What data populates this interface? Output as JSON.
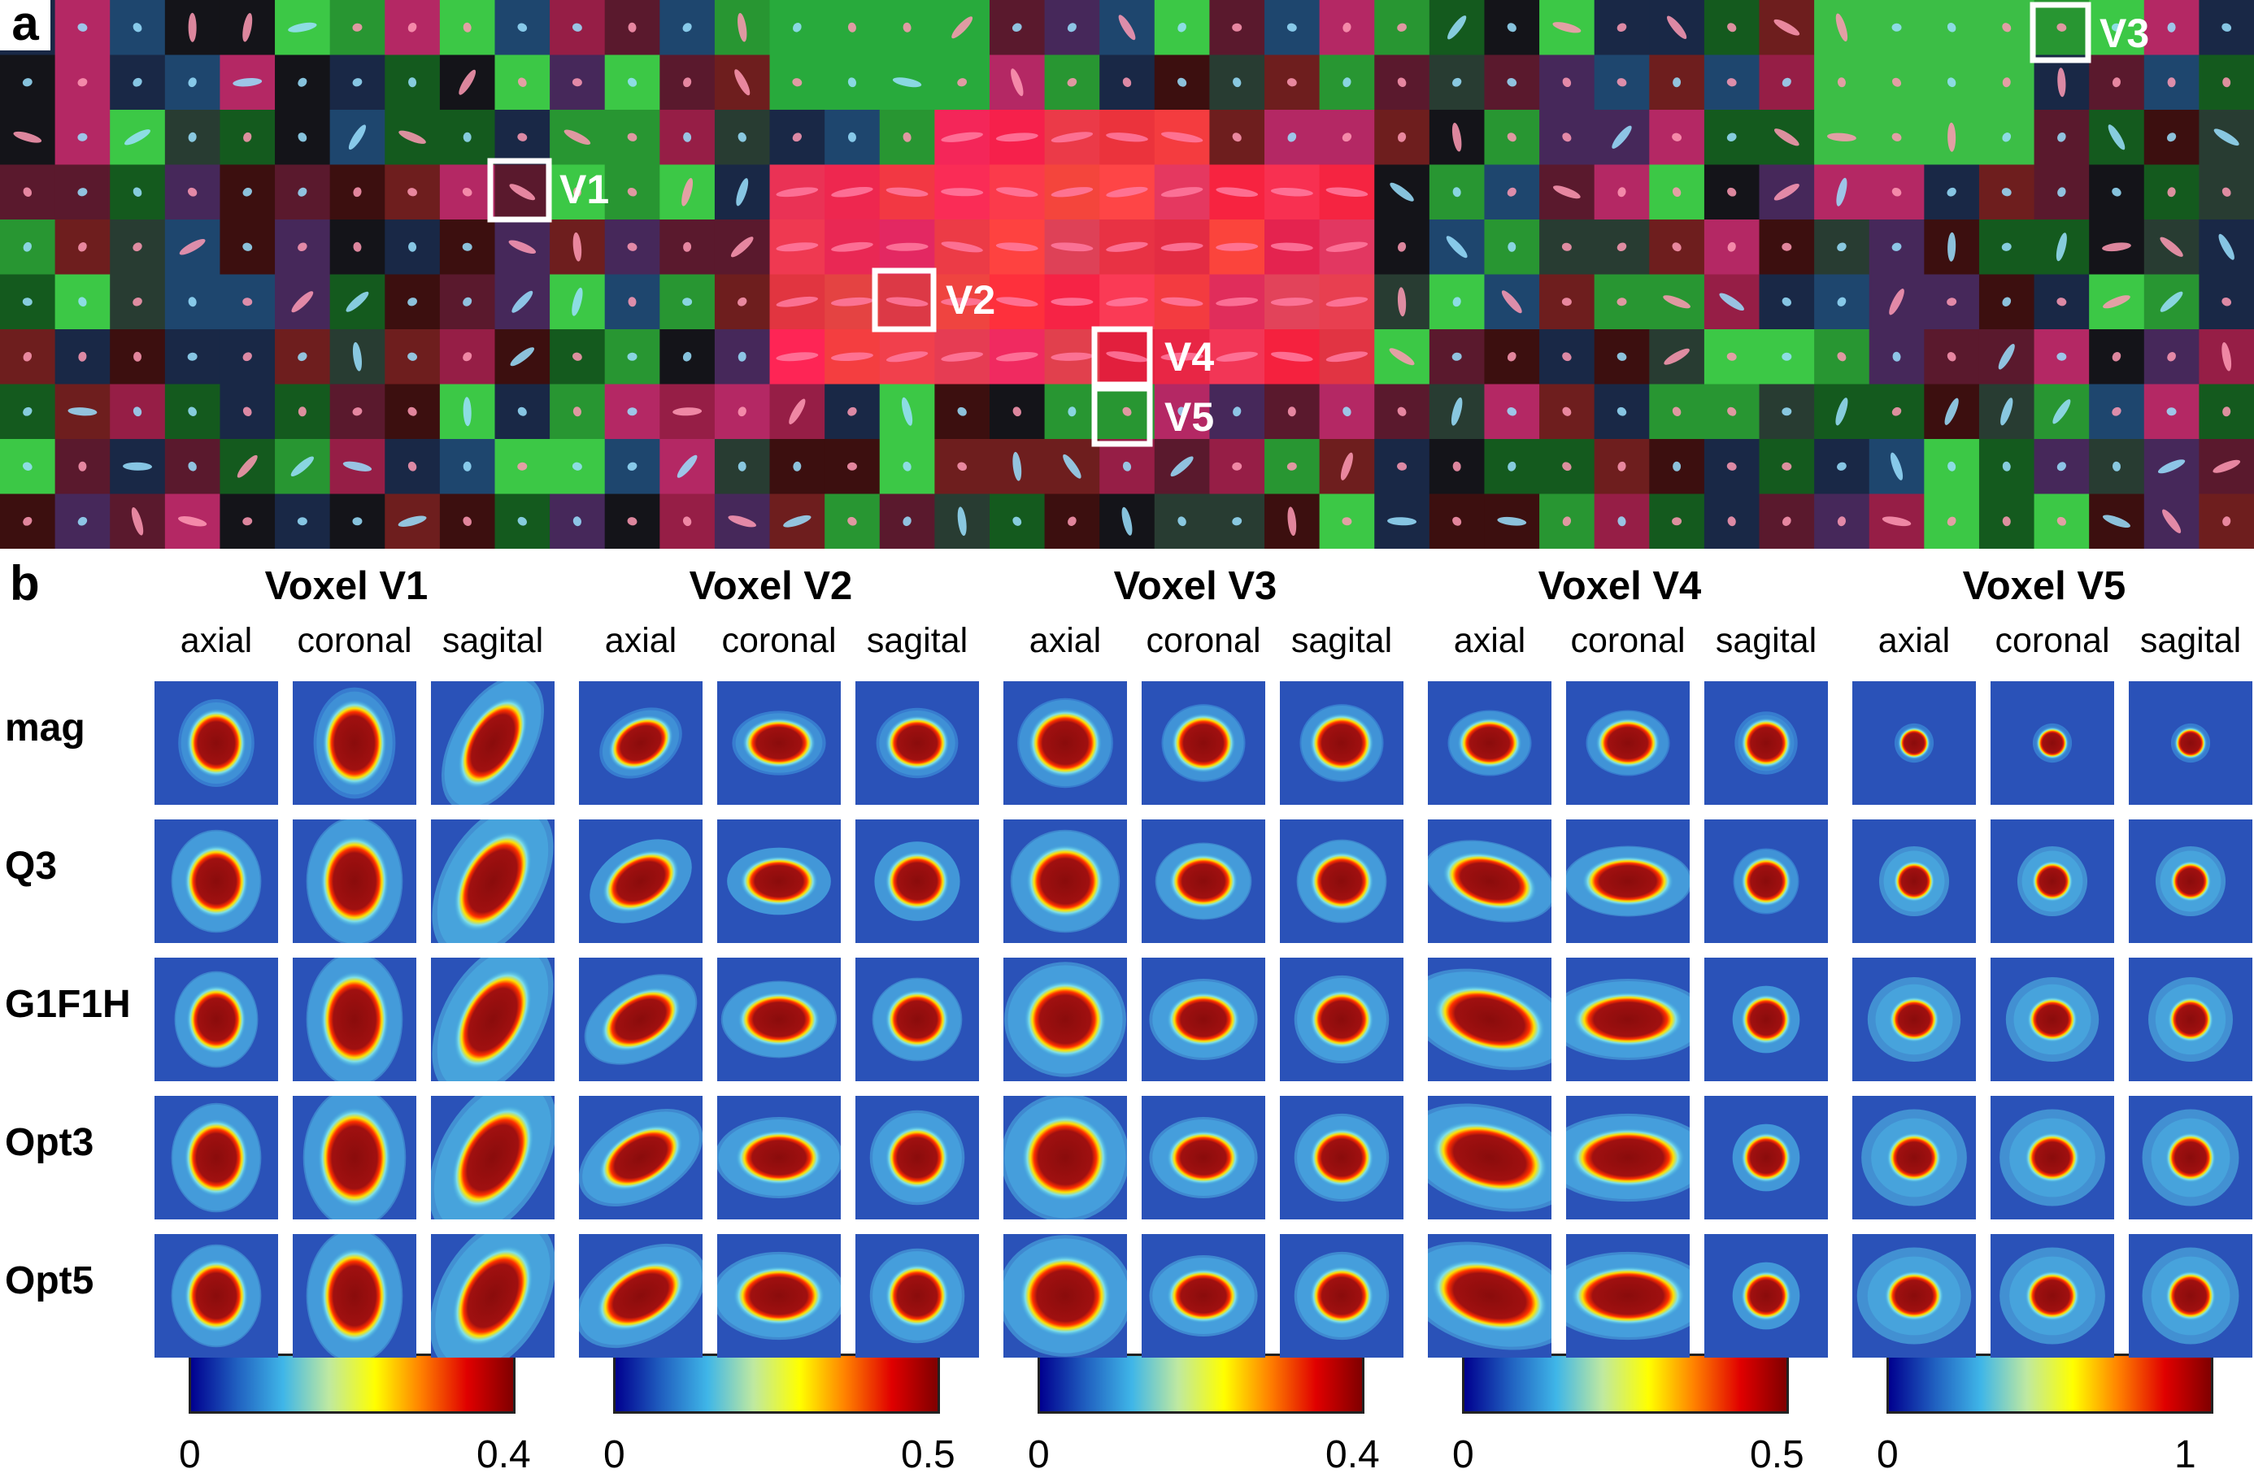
{
  "panel_labels": {
    "a": "a",
    "b": "b"
  },
  "voxel_markers": [
    {
      "id": "v1",
      "label": "V1"
    },
    {
      "id": "v2",
      "label": "V2"
    },
    {
      "id": "v3",
      "label": "V3"
    },
    {
      "id": "v4",
      "label": "V4"
    },
    {
      "id": "v5",
      "label": "V5"
    }
  ],
  "voxels": [
    {
      "title": "Voxel V1",
      "cbar_min": "0",
      "cbar_max": "0.4"
    },
    {
      "title": "Voxel V2",
      "cbar_min": "0",
      "cbar_max": "0.5"
    },
    {
      "title": "Voxel V3",
      "cbar_min": "0",
      "cbar_max": "0.4"
    },
    {
      "title": "Voxel V4",
      "cbar_min": "0",
      "cbar_max": "0.5"
    },
    {
      "title": "Voxel V5",
      "cbar_min": "0",
      "cbar_max": "1"
    }
  ],
  "views": [
    "axial",
    "coronal",
    "sagital"
  ],
  "methods": [
    "mag",
    "Q3",
    "G1F1H",
    "Opt3",
    "Opt5"
  ],
  "colormap": [
    "#00008f",
    "#2060c0",
    "#3fb6e8",
    "#bfe9a0",
    "#ffff00",
    "#ff8000",
    "#e00000",
    "#800000"
  ],
  "colors": {
    "outline": "#ffffff",
    "panel_bg": "#ffffff"
  }
}
